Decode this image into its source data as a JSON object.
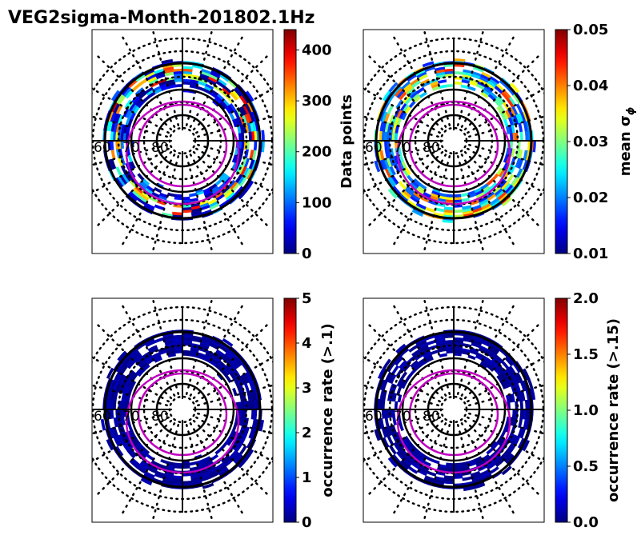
{
  "title": "VEG2sigma-Month-201802.1Hz",
  "chart_data": [
    {
      "type": "heatmap",
      "projection": "polar (magnetic latitude / local time)",
      "latitude_labels": [
        "60",
        "70",
        "80"
      ],
      "colorbar": {
        "label": "Data points",
        "range": [
          0,
          440
        ],
        "ticks": [
          "0",
          "100",
          "200",
          "300",
          "400"
        ],
        "colormap": "jet"
      }
    },
    {
      "type": "heatmap",
      "projection": "polar (magnetic latitude / local time)",
      "latitude_labels": [
        "60",
        "70",
        "80"
      ],
      "colorbar": {
        "label": "mean σ",
        "label_sub": "ϕ",
        "range": [
          0.01,
          0.05
        ],
        "ticks": [
          "0.01",
          "0.02",
          "0.03",
          "0.04",
          "0.05"
        ],
        "colormap": "jet"
      }
    },
    {
      "type": "heatmap",
      "projection": "polar (magnetic latitude / local time)",
      "latitude_labels": [
        "60",
        "70",
        "80"
      ],
      "colorbar": {
        "label": "occurrence rate (>.1)",
        "range": [
          0,
          5
        ],
        "ticks": [
          "0",
          "1",
          "2",
          "3",
          "4",
          "5"
        ],
        "colormap": "jet"
      }
    },
    {
      "type": "heatmap",
      "projection": "polar (magnetic latitude / local time)",
      "latitude_labels": [
        "60",
        "70",
        "80"
      ],
      "colorbar": {
        "label": "occurrence rate (>.15)",
        "range": [
          0,
          2
        ],
        "ticks": [
          "0.0",
          "0.5",
          "1.0",
          "1.5",
          "2.0"
        ],
        "colormap": "jet"
      }
    }
  ],
  "colors": {
    "oval": "#c000c0",
    "grid": "#000000"
  }
}
